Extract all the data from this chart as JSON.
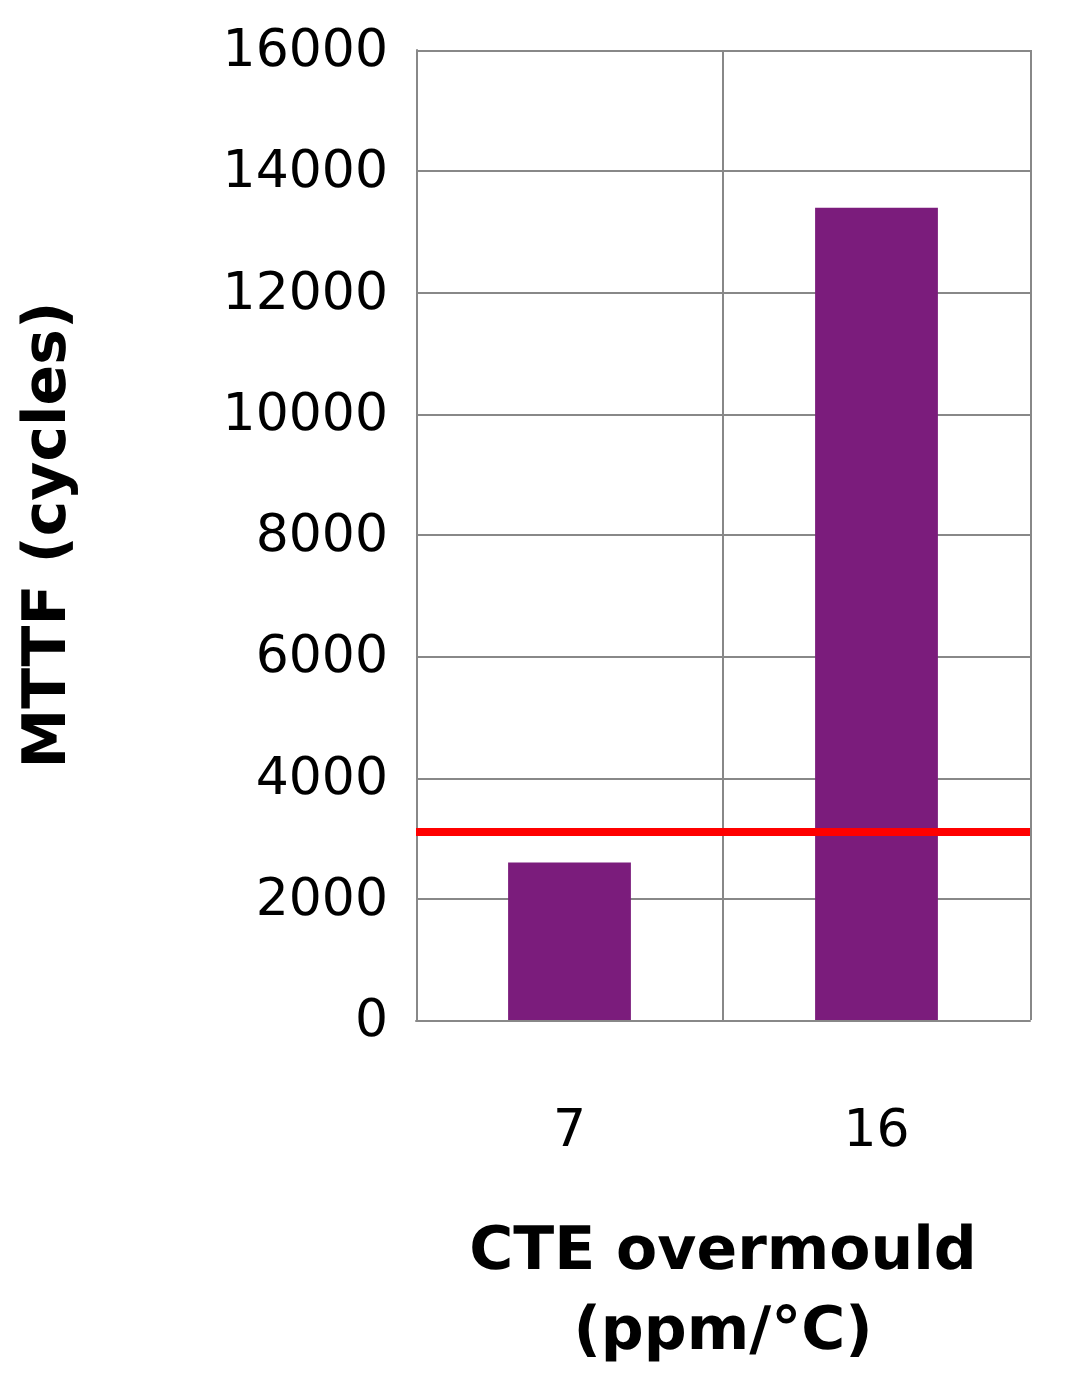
{
  "chart_data": {
    "type": "bar",
    "categories": [
      "7",
      "16"
    ],
    "values": [
      2600,
      13400
    ],
    "color": "#7b1c7c",
    "xlabel": "CTE overmould\n(ppm/°C)",
    "ylabel": "MTTF (cycles)",
    "ylim": [
      0,
      16000
    ],
    "yticks": [
      0,
      2000,
      4000,
      6000,
      8000,
      10000,
      12000,
      14000,
      16000
    ],
    "grid": true,
    "ref_lines": [
      {
        "axis": "y",
        "value": 3100,
        "color": "#ff0000"
      }
    ]
  }
}
